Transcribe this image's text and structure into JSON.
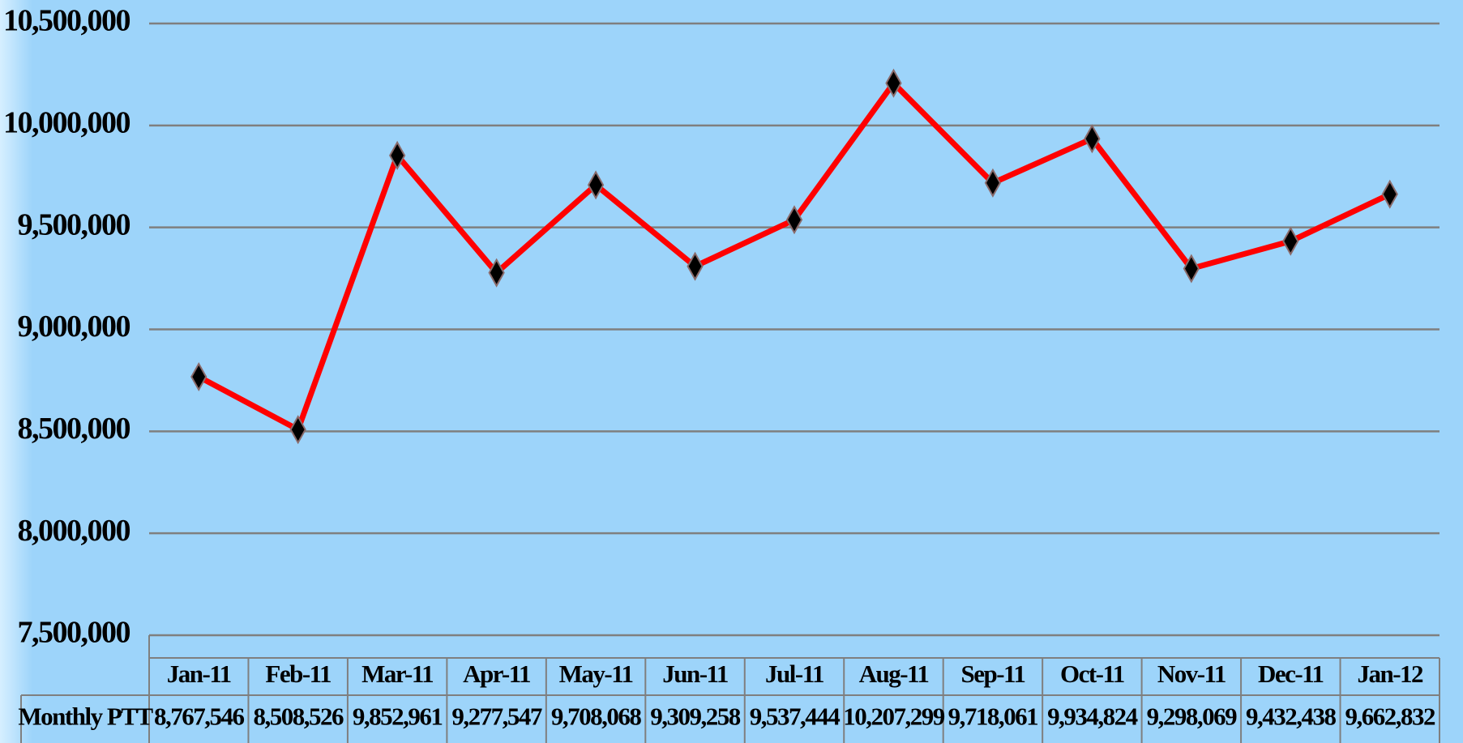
{
  "chart_data": {
    "type": "line",
    "categories": [
      "Jan-11",
      "Feb-11",
      "Mar-11",
      "Apr-11",
      "May-11",
      "Jun-11",
      "Jul-11",
      "Aug-11",
      "Sep-11",
      "Oct-11",
      "Nov-11",
      "Dec-11",
      "Jan-12"
    ],
    "series": [
      {
        "name": "Monthly PTT",
        "color": "#ff0000",
        "values": [
          8767546,
          8508526,
          9852961,
          9277547,
          9708068,
          9309258,
          9537444,
          10207299,
          9718061,
          9934824,
          9298069,
          9432438,
          9662832
        ],
        "value_labels": [
          "8,767,546",
          "8,508,526",
          "9,852,961",
          "9,277,547",
          "9,708,068",
          "9,309,258",
          "9,537,444",
          "10,207,299",
          "9,718,061",
          "9,934,824",
          "9,298,069",
          "9,432,438",
          "9,662,832"
        ]
      }
    ],
    "ylim": [
      7500000,
      10500000
    ],
    "yticks": [
      {
        "value": 7500000,
        "label": "7,500,000"
      },
      {
        "value": 8000000,
        "label": "8,000,000"
      },
      {
        "value": 8500000,
        "label": "8,500,000"
      },
      {
        "value": 9000000,
        "label": "9,000,000"
      },
      {
        "value": 9500000,
        "label": "9,500,000"
      },
      {
        "value": 10000000,
        "label": "10,000,000"
      },
      {
        "value": 10500000,
        "label": "10,500,000"
      }
    ],
    "grid": true,
    "marker_color": "#000000"
  }
}
